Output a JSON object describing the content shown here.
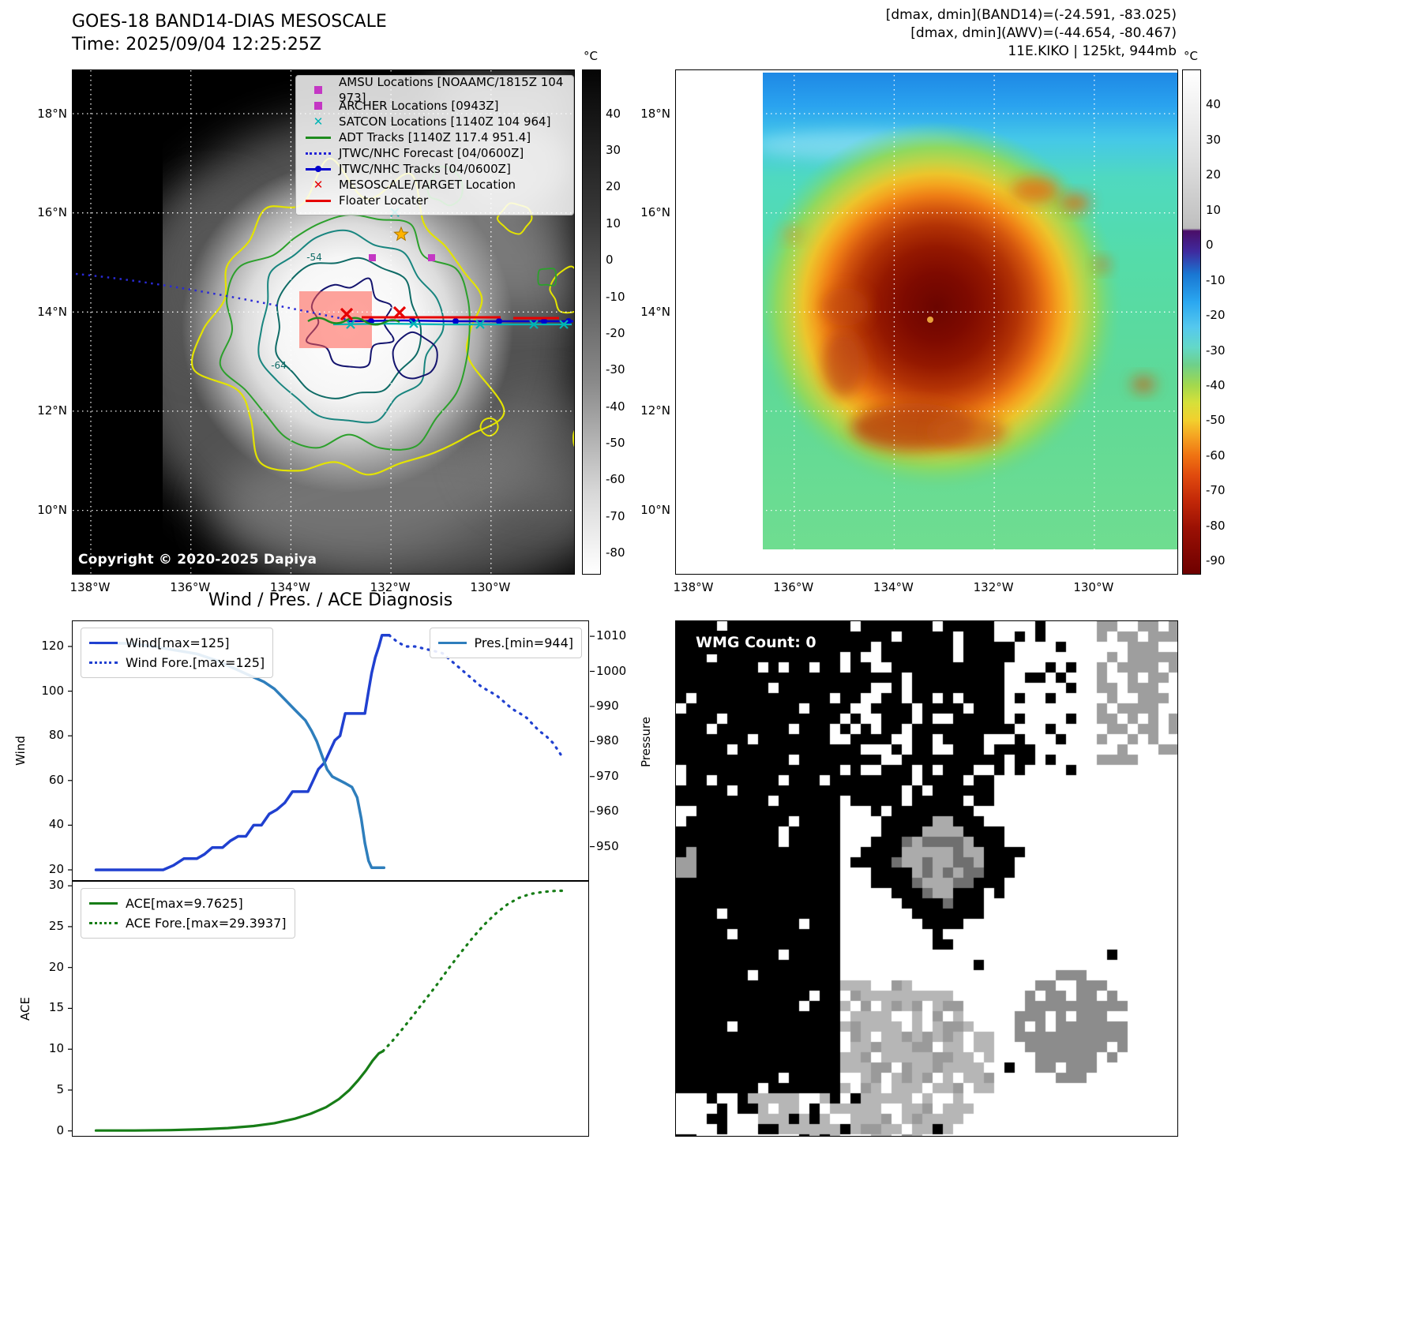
{
  "band14": {
    "title": "GOES-18 BAND14-DIAS MESOSCALE",
    "time": "Time: 2025/09/04 12:25:25Z",
    "copyright": "Copyright © 2020-2025 Dapiya",
    "colorbar": {
      "unit": "°C",
      "ticks": [
        40,
        30,
        20,
        10,
        0,
        -10,
        -20,
        -30,
        -40,
        -50,
        -60,
        -70,
        -80
      ]
    },
    "lat_ticks": [
      "18°N",
      "16°N",
      "14°N",
      "12°N",
      "10°N"
    ],
    "lon_ticks": [
      "138°W",
      "136°W",
      "134°W",
      "132°W",
      "130°W"
    ],
    "contour_labels": [
      "-54",
      "-64"
    ],
    "legend": [
      {
        "marker": "square",
        "color": "#c437c4",
        "label": "AMSU Locations [NOAAMC/1815Z 104 973]"
      },
      {
        "marker": "square",
        "color": "#c437c4",
        "label": "ARCHER Locations [0943Z]"
      },
      {
        "marker": "xmark",
        "color": "#00b5b5",
        "label": "SATCON Locations [1140Z 104 964]"
      },
      {
        "marker": "line",
        "color": "#1e8c1e",
        "label": "ADT Tracks [1140Z 117.4 951.4]"
      },
      {
        "marker": "dotted",
        "color": "#2222d6",
        "label": "JTWC/NHC Forecast [04/0600Z]"
      },
      {
        "marker": "line-dot",
        "color": "#0000cd",
        "label": "JTWC/NHC Tracks [04/0600Z]"
      },
      {
        "marker": "xmark",
        "color": "#e60000",
        "label": "MESOSCALE/TARGET Location"
      },
      {
        "marker": "line",
        "color": "#e60000",
        "label": "Floater Locater"
      }
    ]
  },
  "awv": {
    "header_lines": [
      "[dmax, dmin](BAND14)=(-24.591, -83.025)",
      "[dmax, dmin](AWV)=(-44.654, -80.467)",
      "11E.KIKO | 125kt, 944mb"
    ],
    "colorbar": {
      "unit": "°C",
      "ticks": [
        40,
        30,
        20,
        10,
        0,
        -10,
        -20,
        -30,
        -40,
        -50,
        -60,
        -70,
        -80,
        -90
      ]
    },
    "lat_ticks": [
      "18°N",
      "16°N",
      "14°N",
      "12°N",
      "10°N"
    ],
    "lon_ticks": [
      "138°W",
      "136°W",
      "134°W",
      "132°W",
      "130°W"
    ]
  },
  "diagnosis": {
    "title": "Wind / Pres. / ACE Diagnosis",
    "wind_axis_label": "Wind",
    "pressure_axis_label": "Pressure",
    "ace_axis_label": "ACE"
  },
  "wmg": {
    "count_label": "WMG Count: 0"
  },
  "chart_data": [
    {
      "type": "line",
      "title": "Wind / Pres. / ACE Diagnosis",
      "x_axis": {
        "range": [
          0,
          1
        ],
        "tick_labels_visible": false
      },
      "left_axis": {
        "label": "Wind",
        "ticks": [
          120,
          100,
          80,
          60,
          40,
          20
        ],
        "range": [
          14.7,
          131.3
        ]
      },
      "right_axis": {
        "label": "Pressure",
        "ticks": [
          1010,
          1000,
          990,
          980,
          970,
          960,
          950
        ],
        "range": [
          940,
          1014.3
        ]
      },
      "series": [
        {
          "name": "Wind[max=125]",
          "axis": "left",
          "style": "solid",
          "color": "#2040d0",
          "width": 3.5,
          "points": [
            [
              0.045,
              20
            ],
            [
              0.105,
              20
            ],
            [
              0.145,
              20
            ],
            [
              0.175,
              20
            ],
            [
              0.195,
              22
            ],
            [
              0.215,
              25
            ],
            [
              0.24,
              25
            ],
            [
              0.255,
              27
            ],
            [
              0.27,
              30
            ],
            [
              0.29,
              30
            ],
            [
              0.305,
              33
            ],
            [
              0.32,
              35
            ],
            [
              0.335,
              35
            ],
            [
              0.35,
              40
            ],
            [
              0.365,
              40
            ],
            [
              0.38,
              45
            ],
            [
              0.395,
              47
            ],
            [
              0.41,
              50
            ],
            [
              0.425,
              55
            ],
            [
              0.44,
              55
            ],
            [
              0.455,
              55
            ],
            [
              0.465,
              60
            ],
            [
              0.475,
              65
            ],
            [
              0.487,
              68
            ],
            [
              0.497,
              73
            ],
            [
              0.507,
              78
            ],
            [
              0.517,
              80
            ],
            [
              0.527,
              90
            ],
            [
              0.54,
              90
            ],
            [
              0.553,
              90
            ],
            [
              0.565,
              90
            ],
            [
              0.572,
              100
            ],
            [
              0.578,
              108
            ],
            [
              0.585,
              115
            ],
            [
              0.592,
              120
            ],
            [
              0.598,
              125
            ],
            [
              0.612,
              125
            ]
          ]
        },
        {
          "name": "Wind Fore.[max=125]",
          "axis": "left",
          "style": "dotted",
          "color": "#2040d0",
          "width": 3.2,
          "points": [
            [
              0.612,
              125
            ],
            [
              0.628,
              122
            ],
            [
              0.644,
              120
            ],
            [
              0.662,
              120
            ],
            [
              0.68,
              119
            ],
            [
              0.698,
              118
            ],
            [
              0.715,
              117
            ],
            [
              0.73,
              114
            ],
            [
              0.745,
              111
            ],
            [
              0.76,
              108
            ],
            [
              0.775,
              105
            ],
            [
              0.79,
              102
            ],
            [
              0.805,
              100
            ],
            [
              0.82,
              98
            ],
            [
              0.835,
              95
            ],
            [
              0.85,
              92
            ],
            [
              0.865,
              90
            ],
            [
              0.878,
              88
            ],
            [
              0.89,
              85
            ],
            [
              0.903,
              82
            ],
            [
              0.915,
              80
            ],
            [
              0.928,
              77
            ],
            [
              0.94,
              73
            ],
            [
              0.948,
              70
            ]
          ]
        },
        {
          "name": "Pres.[min=944]",
          "axis": "right",
          "style": "solid",
          "color": "#2e7ebc",
          "width": 3.5,
          "points": [
            [
              0.045,
              1008
            ],
            [
              0.11,
              1008
            ],
            [
              0.16,
              1007
            ],
            [
              0.2,
              1006
            ],
            [
              0.24,
              1005
            ],
            [
              0.28,
              1003
            ],
            [
              0.31,
              1001
            ],
            [
              0.34,
              999
            ],
            [
              0.37,
              997
            ],
            [
              0.39,
              995
            ],
            [
              0.41,
              992
            ],
            [
              0.43,
              989
            ],
            [
              0.45,
              986
            ],
            [
              0.462,
              983
            ],
            [
              0.472,
              980
            ],
            [
              0.482,
              976
            ],
            [
              0.492,
              972
            ],
            [
              0.502,
              970
            ],
            [
              0.515,
              969
            ],
            [
              0.528,
              968
            ],
            [
              0.54,
              967
            ],
            [
              0.55,
              964
            ],
            [
              0.558,
              958
            ],
            [
              0.565,
              951
            ],
            [
              0.572,
              946
            ],
            [
              0.578,
              944
            ],
            [
              0.59,
              944
            ],
            [
              0.602,
              944
            ]
          ]
        }
      ]
    },
    {
      "type": "line",
      "x_axis": {
        "range": [
          0,
          1
        ],
        "tick_labels_visible": false
      },
      "left_axis": {
        "label": "ACE",
        "ticks": [
          30,
          25,
          20,
          15,
          10,
          5,
          0
        ],
        "range": [
          -0.8,
          30.5
        ]
      },
      "series": [
        {
          "name": "ACE[max=9.7625]",
          "axis": "left",
          "style": "solid",
          "color": "#177d17",
          "width": 3.2,
          "points": [
            [
              0.045,
              0.05
            ],
            [
              0.12,
              0.05
            ],
            [
              0.19,
              0.1
            ],
            [
              0.25,
              0.2
            ],
            [
              0.3,
              0.35
            ],
            [
              0.35,
              0.6
            ],
            [
              0.39,
              0.95
            ],
            [
              0.43,
              1.5
            ],
            [
              0.46,
              2.1
            ],
            [
              0.49,
              2.9
            ],
            [
              0.515,
              3.9
            ],
            [
              0.535,
              5.0
            ],
            [
              0.552,
              6.2
            ],
            [
              0.567,
              7.4
            ],
            [
              0.58,
              8.6
            ],
            [
              0.592,
              9.5
            ],
            [
              0.6,
              9.76
            ]
          ]
        },
        {
          "name": "ACE Fore.[max=29.3937]",
          "axis": "left",
          "style": "dotted",
          "color": "#177d17",
          "width": 3.2,
          "points": [
            [
              0.6,
              9.76
            ],
            [
              0.618,
              11.0
            ],
            [
              0.638,
              12.5
            ],
            [
              0.658,
              14.1
            ],
            [
              0.68,
              15.9
            ],
            [
              0.703,
              17.8
            ],
            [
              0.726,
              19.8
            ],
            [
              0.75,
              21.8
            ],
            [
              0.773,
              23.6
            ],
            [
              0.795,
              25.2
            ],
            [
              0.818,
              26.6
            ],
            [
              0.84,
              27.7
            ],
            [
              0.862,
              28.5
            ],
            [
              0.885,
              29.0
            ],
            [
              0.91,
              29.25
            ],
            [
              0.935,
              29.39
            ],
            [
              0.952,
              29.39
            ]
          ]
        }
      ]
    }
  ]
}
